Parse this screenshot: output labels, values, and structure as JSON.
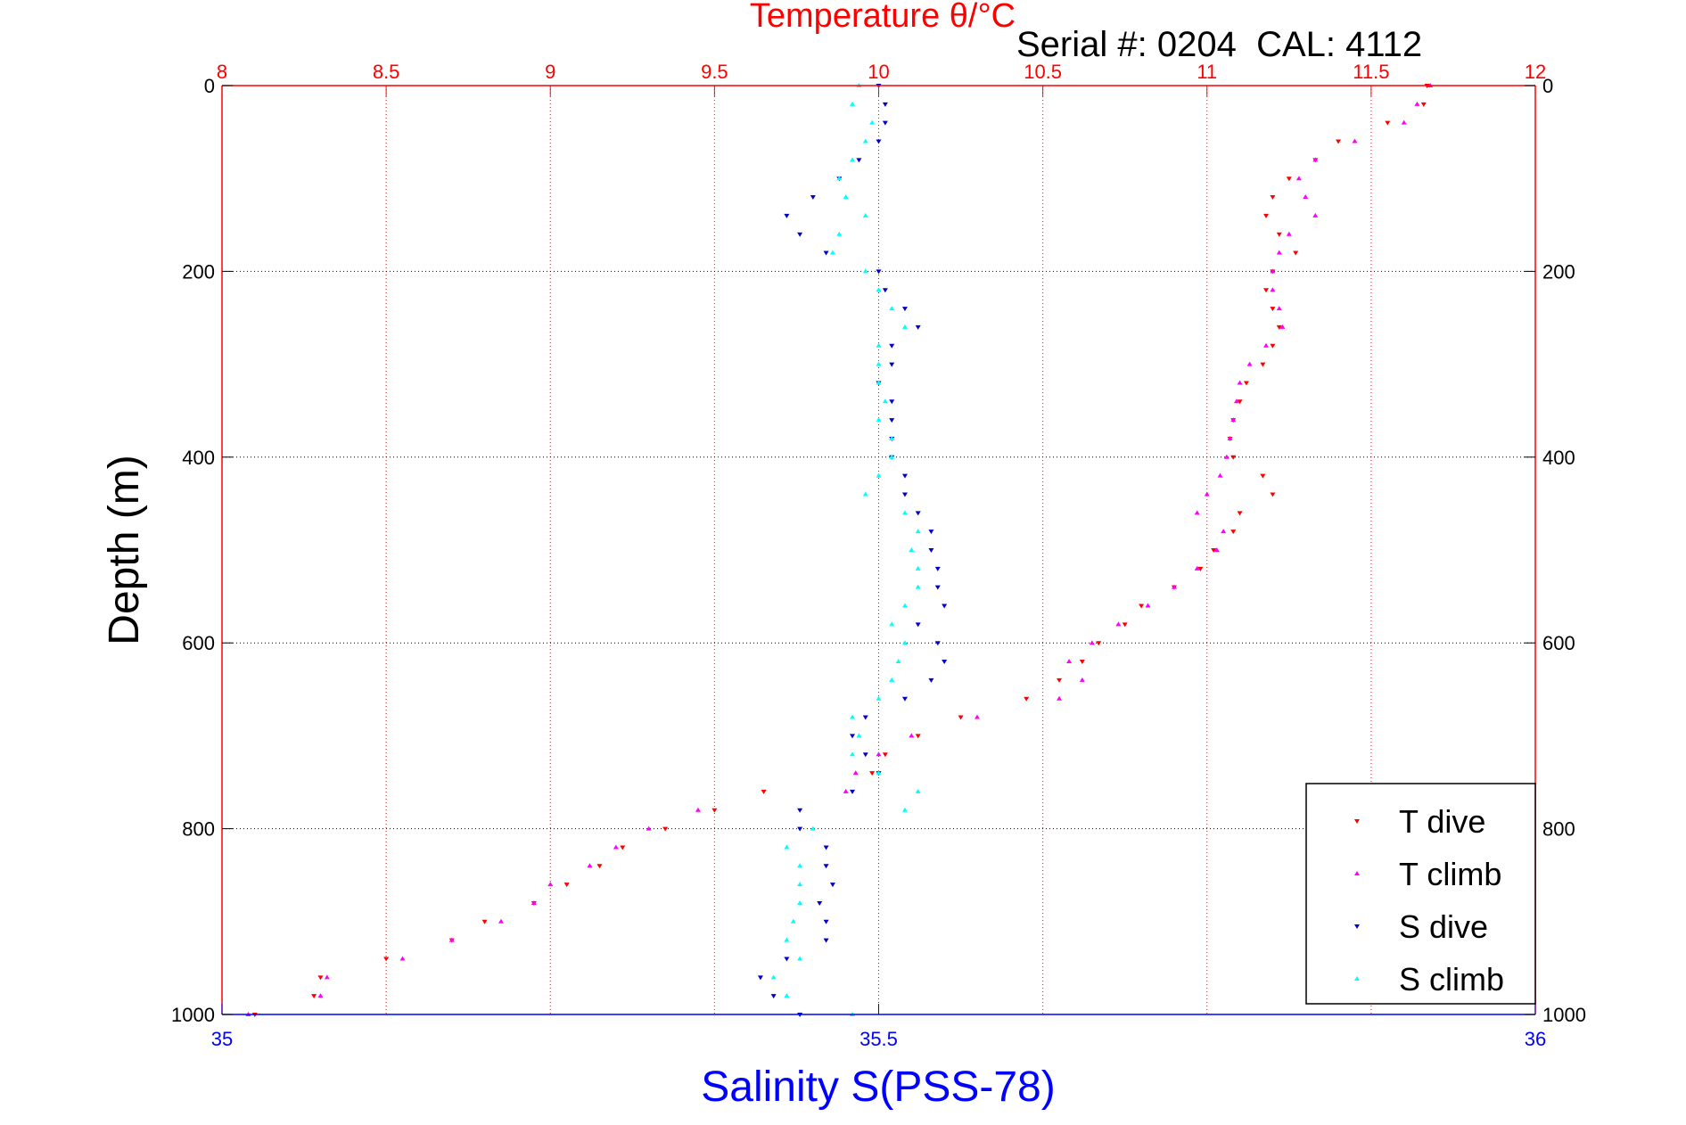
{
  "chart_data": {
    "type": "scatter",
    "title": "Temperature θ/°C",
    "subtitle": "Serial #: 0204  CAL: 4112",
    "ylabel": "Depth (m)",
    "xlabel_bottom": "Salinity S(PSS-78)",
    "ylim": [
      0,
      1000
    ],
    "y_reversed": true,
    "x_top_lim": [
      8,
      12
    ],
    "x_bottom_lim": [
      35,
      36
    ],
    "y_ticks": [
      "0",
      "200",
      "400",
      "600",
      "800",
      "1000"
    ],
    "x_top_ticks": [
      "8",
      "8.5",
      "9",
      "9.5",
      "10",
      "10.5",
      "11",
      "11.5",
      "12"
    ],
    "x_bottom_ticks": [
      "35",
      "35.5",
      "36"
    ],
    "grid": true,
    "legend_position": "bottom-right",
    "colors": {
      "temperature_axis": "#ff0000",
      "salinity_axis": "#0000ff",
      "t_dive": "#ff0000",
      "t_climb": "#ff00ff",
      "s_dive": "#0000cd",
      "s_climb": "#00ffff"
    },
    "series": [
      {
        "name": "T dive",
        "axis": "temperature",
        "color_key": "t_dive",
        "depth": [
          0,
          20,
          40,
          60,
          80,
          100,
          120,
          140,
          160,
          180,
          200,
          220,
          240,
          260,
          280,
          300,
          320,
          340,
          360,
          380,
          400,
          420,
          440,
          460,
          480,
          500,
          520,
          540,
          560,
          580,
          600,
          620,
          640,
          660,
          680,
          700,
          720,
          740,
          760,
          780,
          800,
          820,
          840,
          860,
          880,
          900,
          920,
          940,
          960,
          980,
          1000
        ],
        "values": [
          11.67,
          11.66,
          11.55,
          11.4,
          11.33,
          11.25,
          11.2,
          11.18,
          11.22,
          11.27,
          11.2,
          11.18,
          11.2,
          11.22,
          11.2,
          11.17,
          11.12,
          11.1,
          11.08,
          11.07,
          11.08,
          11.17,
          11.2,
          11.1,
          11.08,
          11.02,
          10.98,
          10.9,
          10.8,
          10.75,
          10.67,
          10.62,
          10.55,
          10.45,
          10.25,
          10.12,
          10.02,
          9.98,
          9.65,
          9.5,
          9.35,
          9.22,
          9.15,
          9.05,
          8.95,
          8.8,
          8.7,
          8.5,
          8.3,
          8.28,
          8.1
        ]
      },
      {
        "name": "T climb",
        "axis": "temperature",
        "color_key": "t_climb",
        "depth": [
          0,
          20,
          40,
          60,
          80,
          100,
          120,
          140,
          160,
          180,
          200,
          220,
          240,
          260,
          280,
          300,
          320,
          340,
          360,
          380,
          400,
          420,
          440,
          460,
          480,
          500,
          520,
          540,
          560,
          580,
          600,
          620,
          640,
          660,
          680,
          700,
          720,
          740,
          760,
          780,
          800,
          820,
          840,
          860,
          880,
          900,
          920,
          940,
          960,
          980,
          1000
        ],
        "values": [
          11.68,
          11.64,
          11.6,
          11.45,
          11.33,
          11.28,
          11.3,
          11.33,
          11.25,
          11.22,
          11.2,
          11.2,
          11.22,
          11.23,
          11.18,
          11.13,
          11.1,
          11.09,
          11.08,
          11.07,
          11.06,
          11.04,
          11.0,
          10.97,
          11.05,
          11.03,
          10.97,
          10.9,
          10.82,
          10.73,
          10.65,
          10.58,
          10.62,
          10.55,
          10.3,
          10.1,
          10.0,
          9.93,
          9.9,
          9.45,
          9.3,
          9.2,
          9.12,
          9.0,
          8.95,
          8.85,
          8.7,
          8.55,
          8.32,
          8.3,
          8.08
        ]
      },
      {
        "name": "S dive",
        "axis": "salinity",
        "color_key": "s_dive",
        "depth": [
          0,
          20,
          40,
          60,
          80,
          100,
          120,
          140,
          160,
          180,
          200,
          220,
          240,
          260,
          280,
          300,
          320,
          340,
          360,
          380,
          400,
          420,
          440,
          460,
          480,
          500,
          520,
          540,
          560,
          580,
          600,
          620,
          640,
          660,
          680,
          700,
          720,
          740,
          760,
          780,
          800,
          820,
          840,
          860,
          880,
          900,
          920,
          940,
          960,
          980,
          1000
        ],
        "values": [
          35.5,
          35.505,
          35.505,
          35.5,
          35.485,
          35.47,
          35.45,
          35.43,
          35.44,
          35.46,
          35.5,
          35.505,
          35.52,
          35.53,
          35.51,
          35.51,
          35.5,
          35.51,
          35.51,
          35.51,
          35.51,
          35.52,
          35.52,
          35.53,
          35.54,
          35.54,
          35.545,
          35.545,
          35.55,
          35.53,
          35.545,
          35.55,
          35.54,
          35.52,
          35.49,
          35.48,
          35.49,
          35.5,
          35.48,
          35.44,
          35.44,
          35.46,
          35.46,
          35.465,
          35.455,
          35.46,
          35.46,
          35.43,
          35.41,
          35.42,
          35.44
        ]
      },
      {
        "name": "S climb",
        "axis": "salinity",
        "color_key": "s_climb",
        "depth": [
          0,
          20,
          40,
          60,
          80,
          100,
          120,
          140,
          160,
          180,
          200,
          220,
          240,
          260,
          280,
          300,
          320,
          340,
          360,
          380,
          400,
          420,
          440,
          460,
          480,
          500,
          520,
          540,
          560,
          580,
          600,
          620,
          640,
          660,
          680,
          700,
          720,
          740,
          760,
          780,
          800,
          820,
          840,
          860,
          880,
          900,
          920,
          940,
          960,
          980,
          1000
        ],
        "values": [
          35.485,
          35.48,
          35.495,
          35.49,
          35.48,
          35.47,
          35.475,
          35.49,
          35.47,
          35.465,
          35.49,
          35.5,
          35.51,
          35.52,
          35.5,
          35.5,
          35.5,
          35.505,
          35.5,
          35.51,
          35.51,
          35.5,
          35.49,
          35.52,
          35.53,
          35.525,
          35.53,
          35.53,
          35.52,
          35.51,
          35.52,
          35.515,
          35.51,
          35.5,
          35.48,
          35.485,
          35.48,
          35.5,
          35.53,
          35.52,
          35.45,
          35.43,
          35.44,
          35.44,
          35.44,
          35.435,
          35.43,
          35.44,
          35.42,
          35.43,
          35.48
        ]
      }
    ]
  }
}
